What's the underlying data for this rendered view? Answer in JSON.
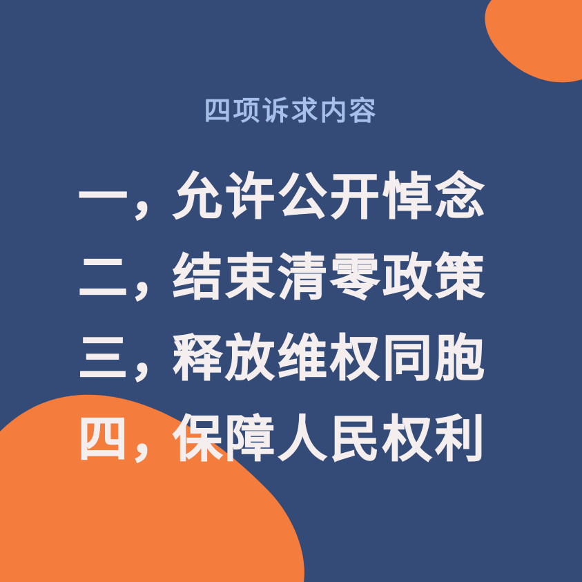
{
  "colors": {
    "background": "#344a77",
    "accent_orange": "#f47c3c",
    "heading_text": "#a7c0ea",
    "body_text": "#f5eeee"
  },
  "heading": "四项诉求内容",
  "demands": [
    {
      "number": "一",
      "separator": "，",
      "text": "允许公开悼念"
    },
    {
      "number": "二",
      "separator": "，",
      "text": "结束清零政策"
    },
    {
      "number": "三",
      "separator": "，",
      "text": "释放维权同胞"
    },
    {
      "number": "四",
      "separator": "，",
      "text": "保障人民权利"
    }
  ]
}
